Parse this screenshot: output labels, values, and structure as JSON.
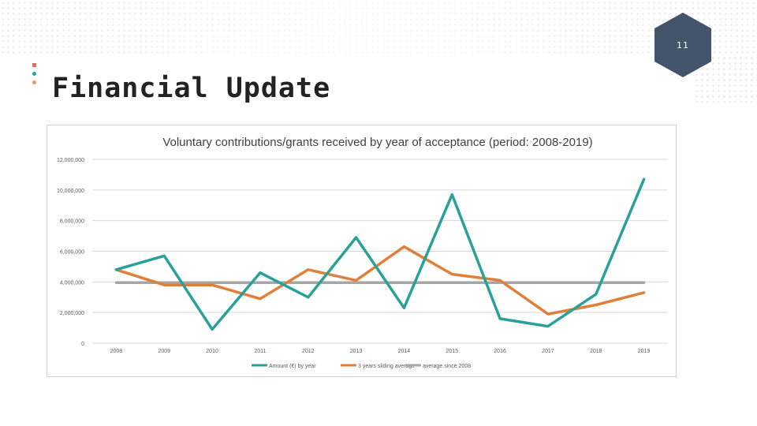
{
  "slide": {
    "number": "11",
    "title": "Financial Update"
  },
  "colors": {
    "badge": "#44546a",
    "series1": "#2aa198",
    "series2": "#e07f3a",
    "series3": "#a6a6a6"
  },
  "chart_data": {
    "type": "line",
    "title": "Voluntary contributions/grants received by year of acceptance (period: 2008-2019)",
    "xlabel": "",
    "ylabel": "",
    "ylim": [
      0,
      12000000
    ],
    "yticks": [
      0,
      2000000,
      4000000,
      6000000,
      8000000,
      10000000,
      12000000
    ],
    "ytick_labels": [
      "0",
      "2,000,000",
      "4,000,000",
      "6,000,000",
      "8,000,000",
      "10,000,000",
      "12,000,000"
    ],
    "categories": [
      "2008",
      "2009",
      "2010",
      "2011",
      "2012",
      "2013",
      "2014",
      "2015",
      "2016",
      "2017",
      "2018",
      "2019"
    ],
    "grid": true,
    "legend": "bottom",
    "series": [
      {
        "name": "Amount (€) by year",
        "values": [
          4800000,
          5700000,
          900000,
          4600000,
          3000000,
          6900000,
          2300000,
          9700000,
          1600000,
          1100000,
          3200000,
          10700000
        ]
      },
      {
        "name": "3 years sliding average",
        "values": [
          4800000,
          3800000,
          3800000,
          2900000,
          4800000,
          4100000,
          6300000,
          4500000,
          4100000,
          1900000,
          2500000,
          3300000
        ]
      },
      {
        "name": "average since 2008",
        "values": [
          3950000,
          3950000,
          3950000,
          3950000,
          3950000,
          3950000,
          3950000,
          3950000,
          3950000,
          3950000,
          3950000,
          3950000
        ]
      }
    ]
  }
}
